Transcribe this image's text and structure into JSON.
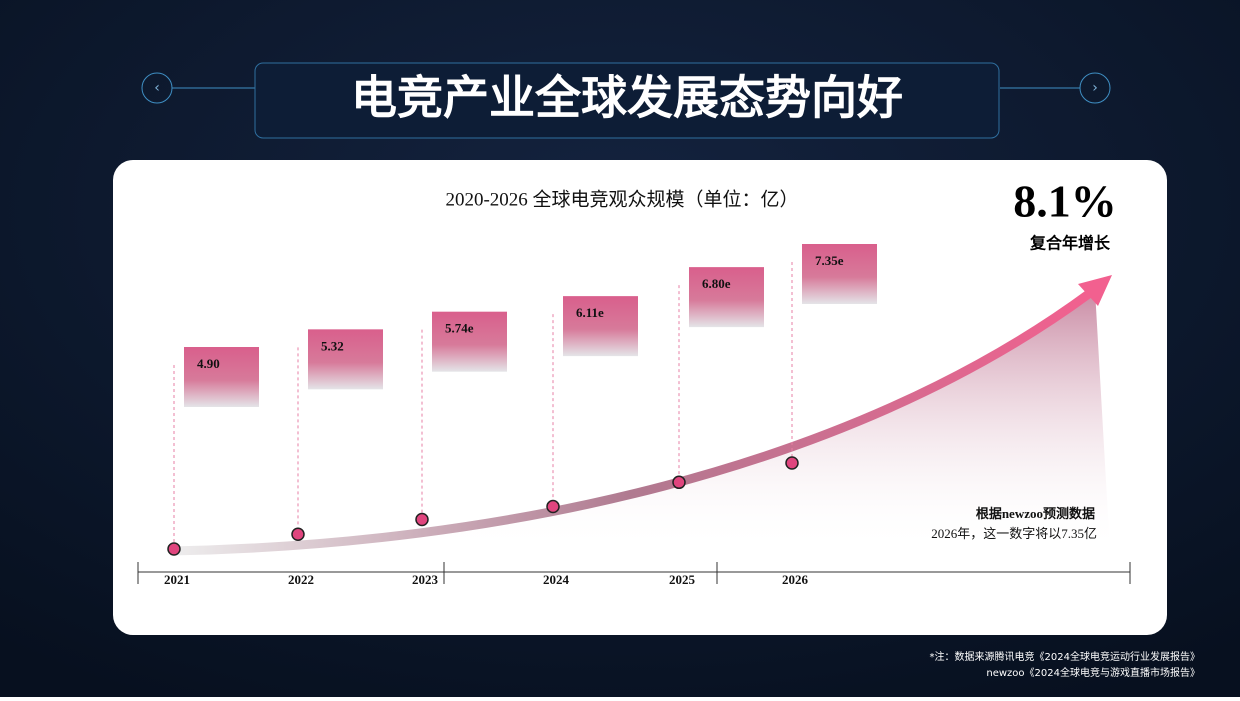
{
  "header": {
    "title": "电竞产业全球发展态势向好"
  },
  "chart_data": {
    "type": "scatter",
    "title": "2020-2026 全球电竞观众规模（单位：亿）",
    "categories": [
      "2021",
      "2022",
      "2023",
      "2024",
      "2025",
      "2026"
    ],
    "values": [
      4.9,
      5.32,
      5.74,
      6.11,
      6.8,
      7.35
    ],
    "value_labels": [
      "4.90",
      "5.32",
      "5.74e",
      "6.11e",
      "6.80e",
      "7.35e"
    ],
    "color": "#e0457e"
  },
  "highlight": {
    "value": "8.1%",
    "label": "复合年增长"
  },
  "note": [
    "根据newzoo预测数据",
    "2026年，这一数字将以7.35亿"
  ],
  "footnote": [
    "*注：数据来源腾讯电竞《2024全球电竞运动行业发展报告》",
    "newzoo《2024全球电竞与游戏直播市场报告》"
  ]
}
